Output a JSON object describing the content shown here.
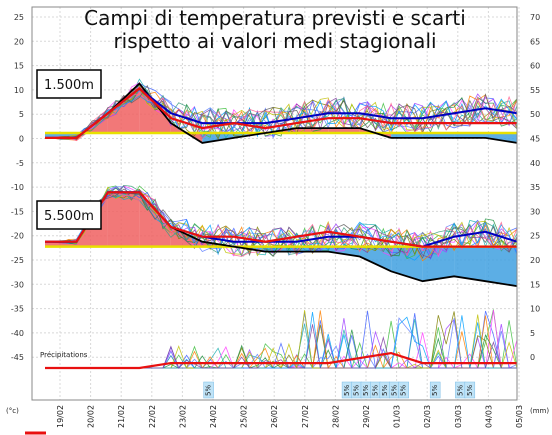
{
  "title_line1": "Campi di temperatura previsti e scarti",
  "title_line2": "rispetto ai valori medi stagionali",
  "level_1500": "1.500m",
  "level_5500": "5.500m",
  "precip_label": "Précipitations",
  "unit_left": "(°c)",
  "unit_right": "(mm)",
  "y_left_ticks": [
    "25",
    "20",
    "15",
    "10",
    "5",
    "0",
    "-5",
    "-10",
    "-15",
    "-20",
    "-25",
    "-30",
    "-35",
    "-40",
    "-45"
  ],
  "y_right_ticks": [
    "70",
    "65",
    "60",
    "55",
    "50",
    "45",
    "40",
    "35",
    "30",
    "25",
    "20",
    "15",
    "10",
    "5",
    "0"
  ],
  "dates": [
    "19/02",
    "20/02",
    "21/02",
    "22/02",
    "23/02",
    "24/02",
    "25/02",
    "26/02",
    "27/02",
    "28/02",
    "29/02",
    "01/03",
    "02/03",
    "03/03",
    "04/03",
    "05/03"
  ],
  "snow_label": "5%",
  "colors": {
    "anomaly_warm": "#f06060",
    "anomaly_cold": "#3fa0e0",
    "mean_line": "#e8e000",
    "control": "#e81010",
    "ensemble_mean": "#0000c0",
    "operational": "#000000"
  },
  "chart_data": {
    "type": "line",
    "xlabel": "",
    "ylabel": "(°c)",
    "ylim": [
      -48,
      25
    ],
    "y2label": "(mm)",
    "y2lim": [
      0,
      70
    ],
    "x": [
      "19/02",
      "20/02",
      "21/02",
      "22/02",
      "23/02",
      "24/02",
      "25/02",
      "26/02",
      "27/02",
      "28/02",
      "29/02",
      "01/03",
      "02/03",
      "03/03",
      "04/03",
      "05/03"
    ],
    "panels": [
      {
        "name": "1.500m",
        "seasonal_mean": [
          0,
          0,
          0,
          0,
          0,
          0,
          0,
          0,
          0,
          0,
          0,
          0,
          0,
          0,
          0,
          0
        ],
        "series": [
          {
            "name": "control",
            "values": [
              -1,
              -1,
              4,
              9,
              3,
              1,
              2,
              1,
              2,
              3,
              3,
              2,
              2,
              2,
              2,
              2
            ]
          },
          {
            "name": "ensemble-mean",
            "values": [
              -1,
              -1,
              4,
              9,
              4,
              2,
              2,
              2,
              3,
              4,
              4,
              3,
              3,
              4,
              5,
              4
            ]
          },
          {
            "name": "operational",
            "values": [
              -1,
              -1,
              4,
              10,
              2,
              -2,
              -1,
              0,
              1,
              1,
              1,
              -1,
              -1,
              -1,
              -1,
              -2
            ]
          }
        ]
      },
      {
        "name": "5.500m",
        "seasonal_mean": [
          -23,
          -23,
          -23,
          -23,
          -23,
          -23,
          -23,
          -23,
          -23,
          -23,
          -23,
          -23,
          -23,
          -23,
          -23,
          -23
        ],
        "series": [
          {
            "name": "control",
            "values": [
              -22,
              -22,
              -12,
              -12,
              -19,
              -21,
              -21,
              -22,
              -21,
              -20,
              -21,
              -22,
              -23,
              -23,
              -23,
              -23
            ]
          },
          {
            "name": "ensemble-mean",
            "values": [
              -22,
              -22,
              -12,
              -12,
              -19,
              -21,
              -22,
              -22,
              -22,
              -21,
              -21,
              -22,
              -23,
              -21,
              -20,
              -22
            ]
          },
          {
            "name": "operational",
            "values": [
              -22,
              -22,
              -12,
              -12,
              -19,
              -22,
              -23,
              -24,
              -24,
              -24,
              -25,
              -28,
              -30,
              -29,
              -30,
              -31
            ]
          }
        ]
      },
      {
        "name": "Précipitations",
        "series": [
          {
            "name": "control",
            "values": [
              0,
              0,
              0,
              0,
              1,
              1,
              1,
              1,
              1,
              1,
              2,
              3,
              1,
              1,
              1,
              1
            ]
          },
          {
            "name": "ensemble-mean",
            "values": [
              0,
              0,
              0,
              0,
              1,
              1,
              1,
              1,
              1,
              1,
              2,
              3,
              1,
              1,
              1,
              1
            ]
          }
        ]
      }
    ],
    "grid": true,
    "legend": "none"
  }
}
